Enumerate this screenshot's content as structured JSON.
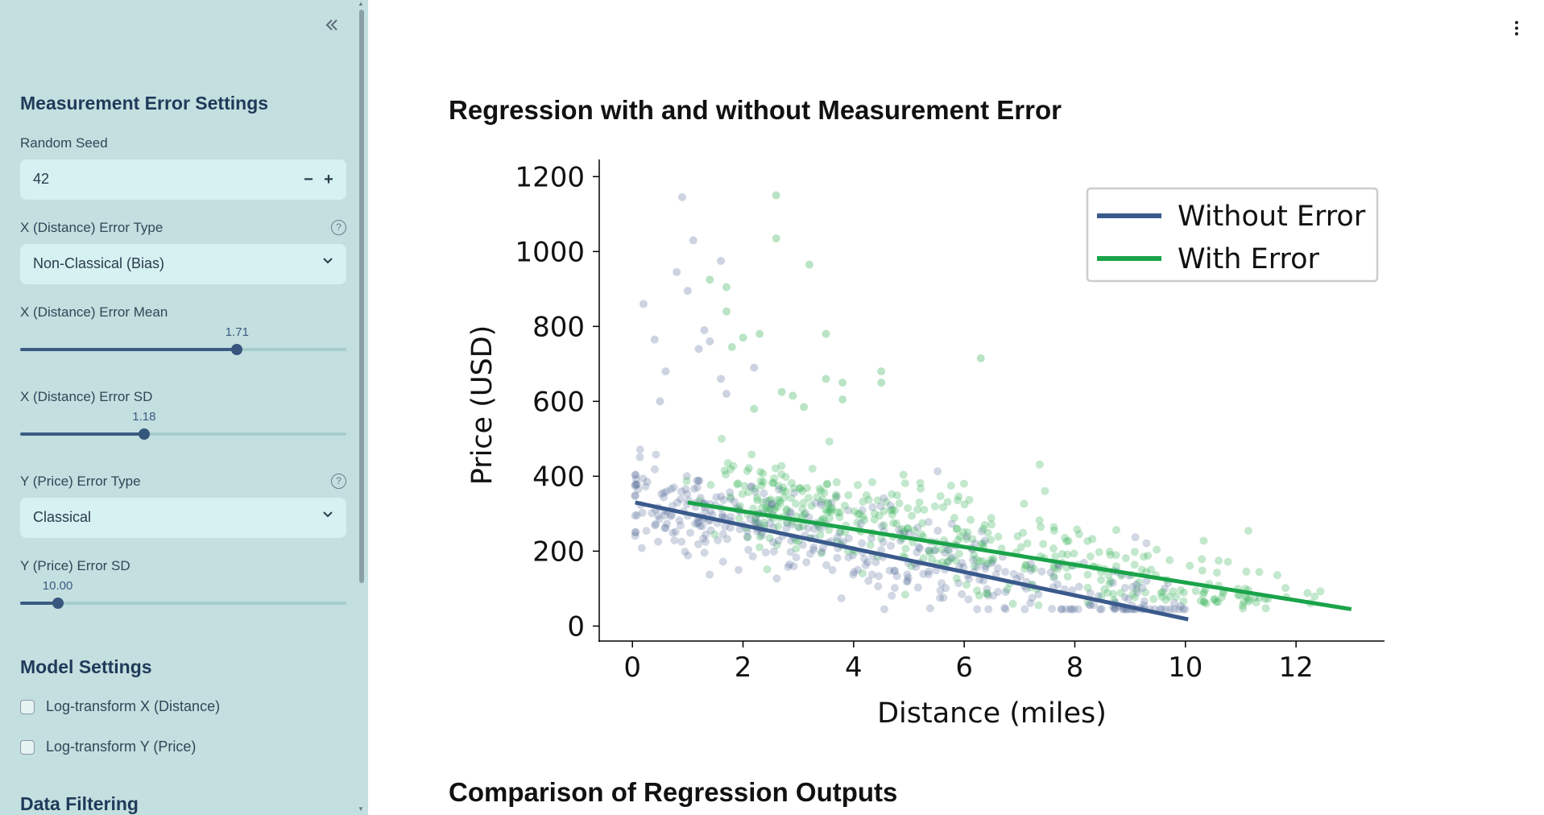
{
  "sidebar": {
    "collapse_icon": "double-chevron-left-icon",
    "measurement_heading": "Measurement Error Settings",
    "random_seed": {
      "label": "Random Seed",
      "value": "42",
      "minus": "−",
      "plus": "+"
    },
    "x_error_type": {
      "label": "X (Distance) Error Type",
      "value": "Non-Classical (Bias)"
    },
    "x_error_mean": {
      "label": "X (Distance) Error Mean",
      "value": "1.71",
      "fraction": 0.665
    },
    "x_error_sd": {
      "label": "X (Distance) Error SD",
      "value": "1.18",
      "fraction": 0.38
    },
    "y_error_type": {
      "label": "Y (Price) Error Type",
      "value": "Classical"
    },
    "y_error_sd": {
      "label": "Y (Price) Error SD",
      "value": "10.00",
      "fraction": 0.115
    },
    "model_heading": "Model Settings",
    "log_x": {
      "label": "Log-transform X (Distance)",
      "checked": false
    },
    "log_y": {
      "label": "Log-transform Y (Price)",
      "checked": false
    },
    "filter_heading": "Data Filtering"
  },
  "main": {
    "title": "Regression with and without Measurement Error",
    "comparison_title": "Comparison of Regression Outputs"
  },
  "colors": {
    "blue": "#3a5a8c",
    "green": "#1aa34a",
    "sidebar_bg": "#c4dfdf"
  },
  "chart_data": {
    "type": "scatter",
    "title": "",
    "xlabel": "Distance (miles)",
    "ylabel": "Price (USD)",
    "xlim": [
      -0.6,
      13.6
    ],
    "ylim": [
      -40,
      1220
    ],
    "xticks": [
      "0",
      "2",
      "4",
      "6",
      "8",
      "10",
      "12"
    ],
    "yticks": [
      "0",
      "200",
      "400",
      "600",
      "800",
      "1000",
      "1200"
    ],
    "legend": {
      "placement": "top-right",
      "entries": [
        "Without Error",
        "With Error"
      ]
    },
    "series": [
      {
        "name": "Without Error",
        "color": "#3a5a8c",
        "points_color": "#5a6e9c",
        "fit": {
          "x0": 0.05,
          "y0": 330,
          "x1": 10.05,
          "y1": 18
        }
      },
      {
        "name": "With Error",
        "color": "#1aa34a",
        "points_color": "#38b35a",
        "fit": {
          "x0": 1.0,
          "y0": 330,
          "x1": 13.0,
          "y1": 45
        }
      }
    ],
    "outliers_without": [
      [
        0.2,
        860
      ],
      [
        0.9,
        1145
      ],
      [
        1.1,
        1030
      ],
      [
        0.8,
        945
      ],
      [
        1.0,
        895
      ],
      [
        1.6,
        975
      ],
      [
        1.4,
        760
      ],
      [
        1.3,
        790
      ],
      [
        0.4,
        765
      ],
      [
        0.6,
        680
      ],
      [
        1.6,
        660
      ],
      [
        2.2,
        690
      ],
      [
        0.5,
        600
      ],
      [
        1.2,
        740
      ],
      [
        1.7,
        620
      ]
    ],
    "outliers_with": [
      [
        2.6,
        1150
      ],
      [
        2.6,
        1035
      ],
      [
        3.2,
        965
      ],
      [
        1.4,
        925
      ],
      [
        1.7,
        905
      ],
      [
        1.7,
        840
      ],
      [
        3.5,
        780
      ],
      [
        2.3,
        780
      ],
      [
        2.0,
        770
      ],
      [
        1.8,
        745
      ],
      [
        6.3,
        715
      ],
      [
        3.5,
        660
      ],
      [
        3.8,
        650
      ],
      [
        4.5,
        680
      ],
      [
        4.5,
        650
      ],
      [
        3.8,
        605
      ],
      [
        2.7,
        625
      ],
      [
        2.9,
        615
      ],
      [
        2.2,
        580
      ],
      [
        3.1,
        585
      ]
    ],
    "samples": 420
  }
}
